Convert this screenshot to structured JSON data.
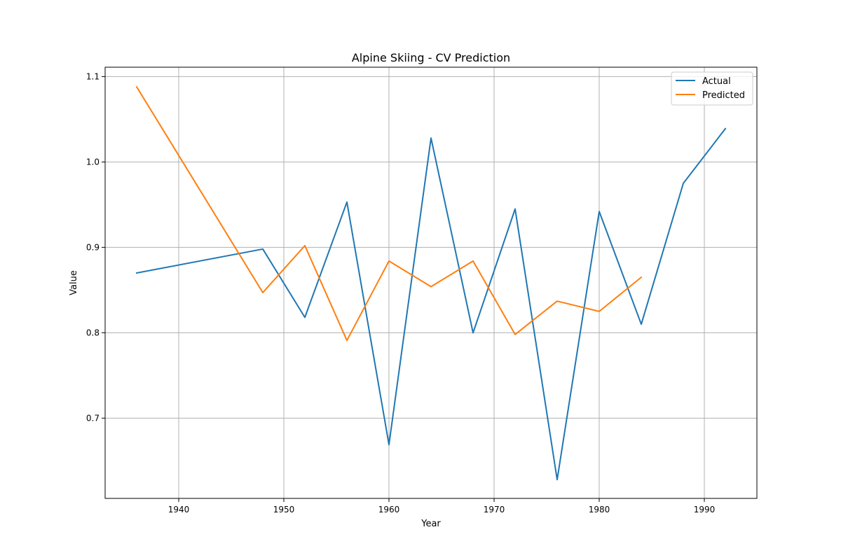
{
  "chart_data": {
    "type": "line",
    "title": "Alpine Skiing - CV Prediction",
    "xlabel": "Year",
    "ylabel": "Value",
    "xlim": [
      1933,
      1995
    ],
    "ylim": [
      0.606,
      1.111
    ],
    "xticks": [
      1940,
      1950,
      1960,
      1970,
      1980,
      1990
    ],
    "yticks": [
      0.7,
      0.8,
      0.9,
      1.0,
      1.1
    ],
    "ytick_labels": [
      "0.7",
      "0.8",
      "0.9",
      "1.0",
      "1.1"
    ],
    "grid": true,
    "legend_position": "top-right",
    "series": [
      {
        "name": "Actual",
        "color": "#1f77b4",
        "x": [
          1936,
          1948,
          1952,
          1956,
          1960,
          1964,
          1968,
          1972,
          1976,
          1980,
          1984,
          1988,
          1992
        ],
        "y": [
          0.87,
          0.898,
          0.818,
          0.953,
          0.669,
          1.028,
          0.8,
          0.945,
          0.628,
          0.942,
          0.81,
          0.975,
          1.039
        ]
      },
      {
        "name": "Predicted",
        "color": "#ff7f0e",
        "x": [
          1936,
          1948,
          1952,
          1956,
          1960,
          1964,
          1968,
          1972,
          1976,
          1980,
          1984
        ],
        "y": [
          1.088,
          0.847,
          0.902,
          0.791,
          0.884,
          0.854,
          0.884,
          0.798,
          0.837,
          0.825,
          0.865
        ]
      }
    ]
  }
}
